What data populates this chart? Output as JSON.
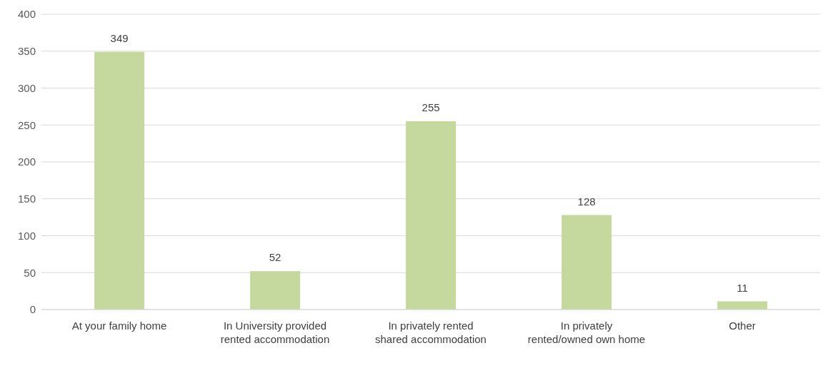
{
  "chart_data": {
    "type": "bar",
    "categories": [
      "At your family home",
      "In University provided rented accommodation",
      "In privately rented shared accommodation",
      "In privately rented/owned own home",
      "Other"
    ],
    "values": [
      349,
      52,
      255,
      128,
      11
    ],
    "color": "#c5d89d",
    "ylim": [
      0,
      400
    ],
    "yticks": [
      0,
      50,
      100,
      150,
      200,
      250,
      300,
      350,
      400
    ],
    "grid": "y",
    "data_labels": true,
    "legend": false
  }
}
